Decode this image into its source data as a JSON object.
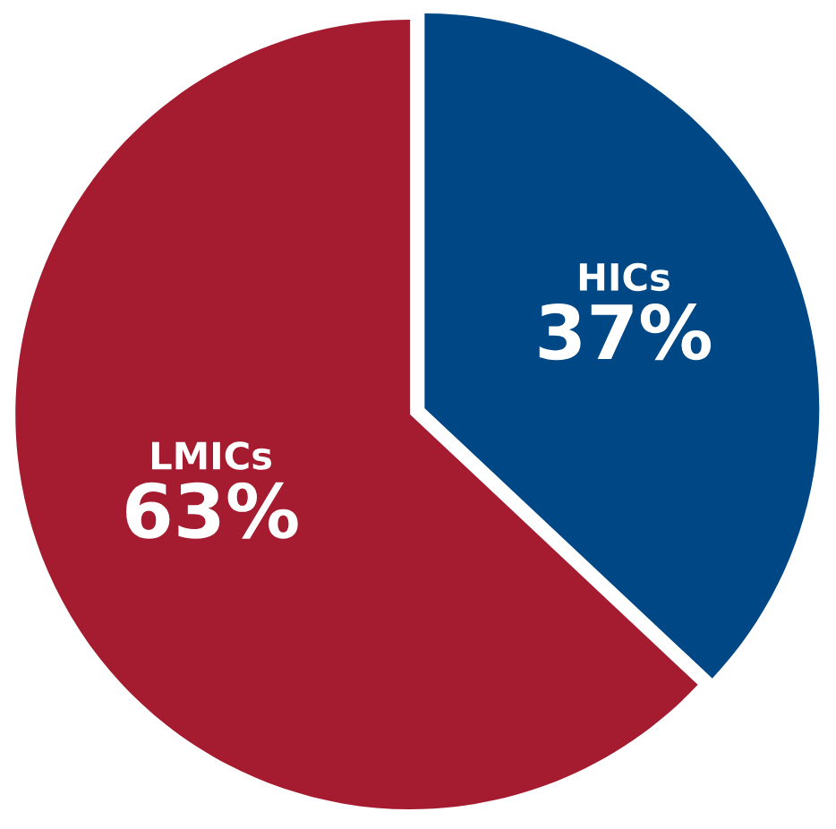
{
  "chart_data": {
    "type": "pie",
    "categories": [
      "HICs",
      "LMICs"
    ],
    "values": [
      37,
      63
    ],
    "colors": [
      "#004785",
      "#a51c30"
    ],
    "value_labels": [
      "37%",
      "63%"
    ]
  }
}
